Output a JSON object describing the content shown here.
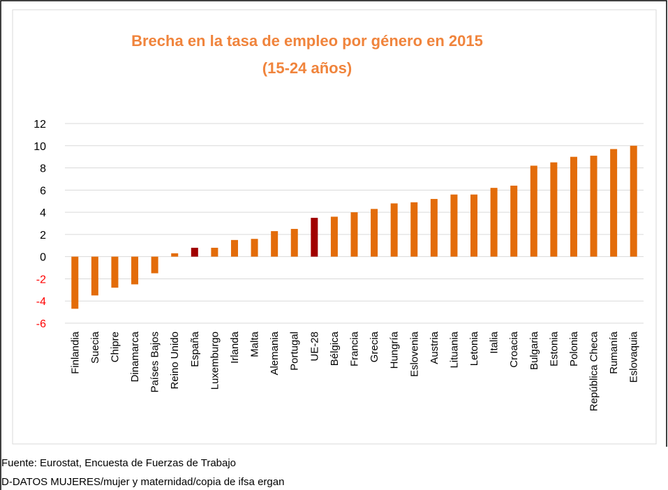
{
  "chart_data": {
    "type": "bar",
    "title": [
      "Brecha en la tasa de empleo por género en 2015",
      "(15-24 años)"
    ],
    "categories": [
      "Finlandia",
      "Suecia",
      "Chipre",
      "Dinamarca",
      "Países Bajos",
      "Reino Unido",
      "España",
      "Luxemburgo",
      "Irlanda",
      "Malta",
      "Alemania",
      "Portugal",
      "UE-28",
      "Bélgica",
      "Francia",
      "Grecia",
      "Hungría",
      "Eslovenia",
      "Austria",
      "Lituania",
      "Letonia",
      "Italia",
      "Croacia",
      "Bulgaria",
      "Estonia",
      "Polonia",
      "República Checa",
      "Rumanía",
      "Eslovaquia"
    ],
    "values": [
      -4.7,
      -3.5,
      -2.8,
      -2.5,
      -1.5,
      0.3,
      0.8,
      0.8,
      1.5,
      1.6,
      2.3,
      2.5,
      3.5,
      3.6,
      4.0,
      4.3,
      4.8,
      4.9,
      5.2,
      5.6,
      5.6,
      6.2,
      6.4,
      8.2,
      8.5,
      9.0,
      9.1,
      9.7,
      10.0
    ],
    "colors": [
      "#e36c0a",
      "#e36c0a",
      "#e36c0a",
      "#e36c0a",
      "#e36c0a",
      "#e36c0a",
      "#a00000",
      "#e36c0a",
      "#e36c0a",
      "#e36c0a",
      "#e36c0a",
      "#e36c0a",
      "#a00000",
      "#e36c0a",
      "#e36c0a",
      "#e36c0a",
      "#e36c0a",
      "#e36c0a",
      "#e36c0a",
      "#e36c0a",
      "#e36c0a",
      "#e36c0a",
      "#e36c0a",
      "#e36c0a",
      "#e36c0a",
      "#e36c0a",
      "#e36c0a",
      "#e36c0a",
      "#e36c0a"
    ],
    "ylim": [
      -6,
      12
    ],
    "yticks": [
      -6,
      -4,
      -2,
      0,
      2,
      4,
      6,
      8,
      10,
      12
    ],
    "grid": true,
    "negative_tick_color": "#ff0000",
    "notes": [
      "Fuente: Eurostat, Encuesta de Fuerzas de Trabajo",
      "D-DATOS MUJERES/mujer y maternidad/copia de ifsa  ergan"
    ]
  }
}
